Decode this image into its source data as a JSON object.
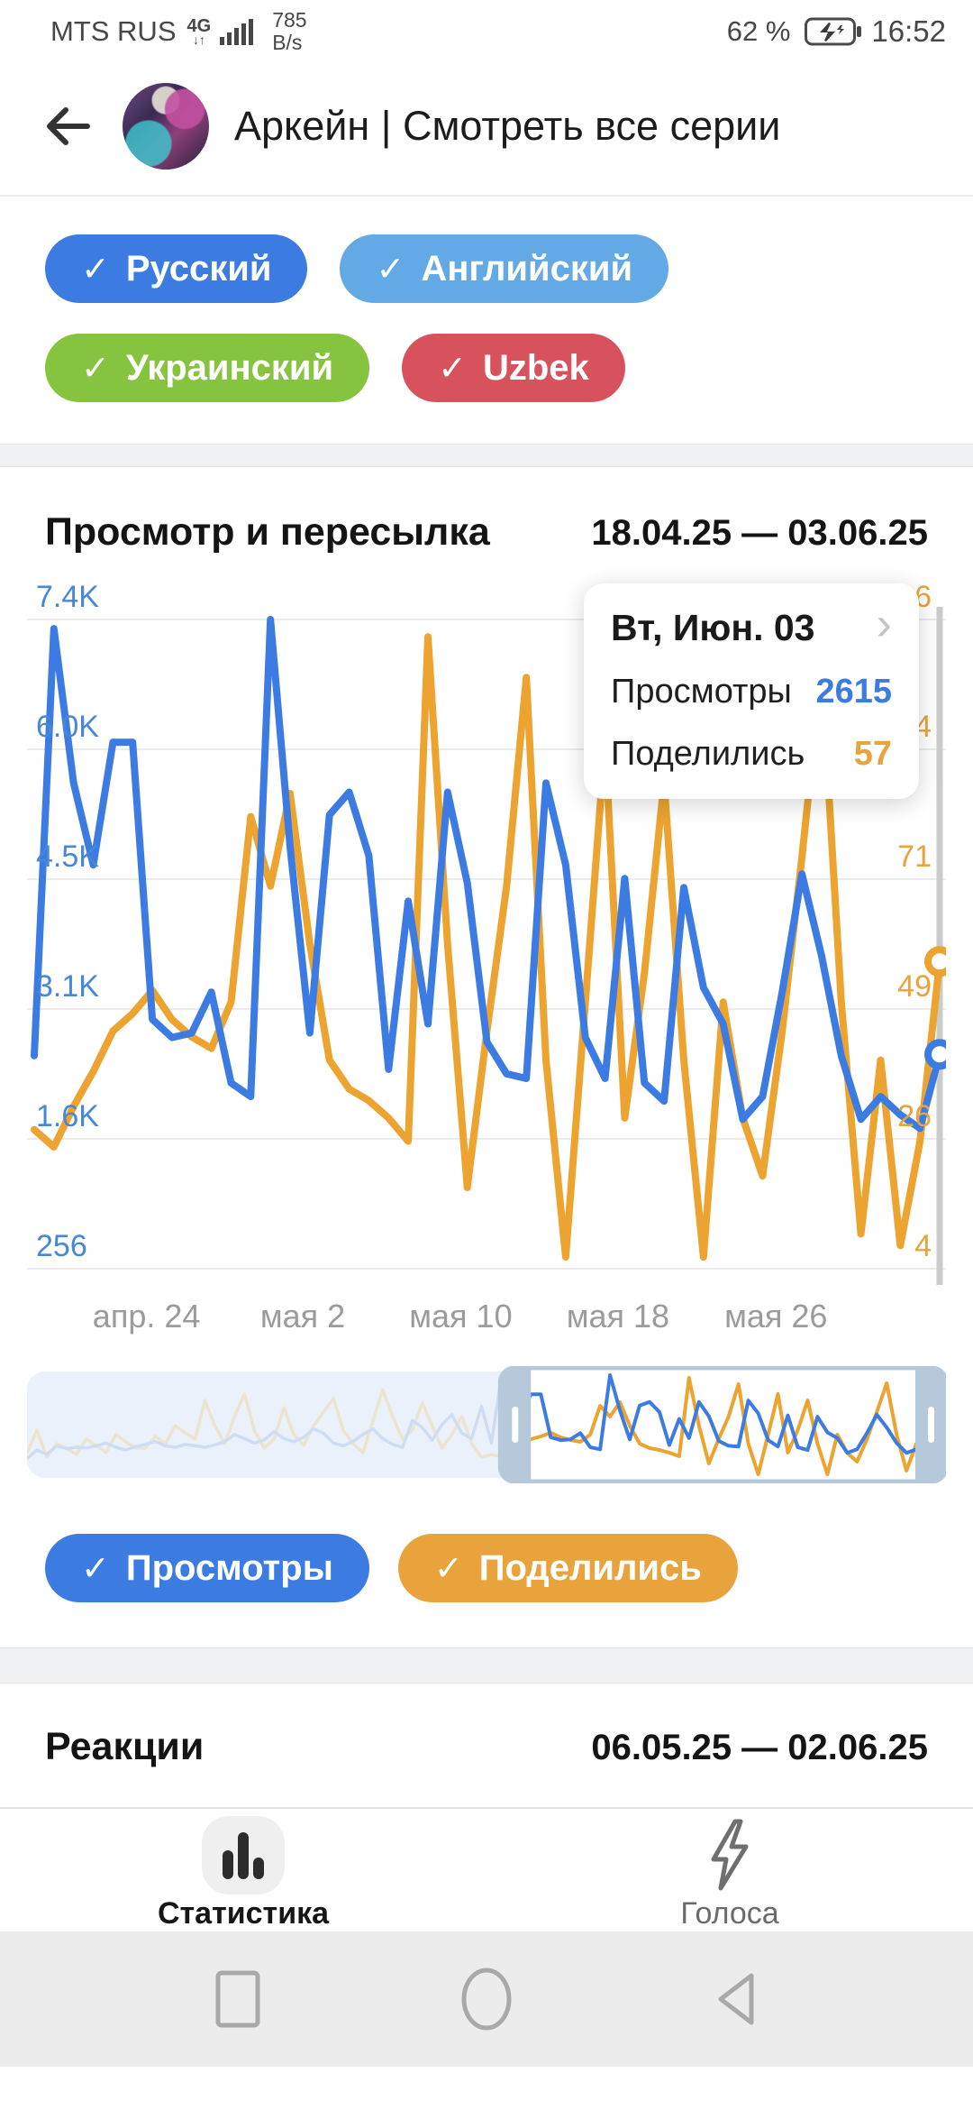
{
  "status_bar": {
    "carrier": "MTS RUS",
    "network": "4G",
    "net_arrows": "↓↑",
    "speed_value": "785",
    "speed_unit": "B/s",
    "battery_percent": "62 %",
    "time": "16:52"
  },
  "header": {
    "title": "Аркейн | Смотреть все серии"
  },
  "language_chips": [
    {
      "label": "Русский",
      "color": "#3c7ce2"
    },
    {
      "label": "Английский",
      "color": "#63a9e6"
    },
    {
      "label": "Украинский",
      "color": "#86c33e"
    },
    {
      "label": "Uzbek",
      "color": "#d7525c"
    }
  ],
  "views_section": {
    "title": "Просмотр и пересылка",
    "date_range": "18.04.25 — 03.06.25"
  },
  "tooltip": {
    "title": "Вт, Июн. 03",
    "rows": [
      {
        "label": "Просмотры",
        "value": "2615",
        "color": "#3c7ce2"
      },
      {
        "label": "Поделились",
        "value": "57",
        "color": "#e8a33d"
      }
    ]
  },
  "chart_data": {
    "type": "line",
    "title": "Просмотр и пересылка",
    "date_range": "18.04.25 — 03.06.25",
    "x_tick_labels": [
      "апр. 24",
      "мая 2",
      "мая 10",
      "мая 18",
      "мая 26"
    ],
    "x_tick_positions_pct": [
      13,
      30,
      47.2,
      64.3,
      81.5
    ],
    "y_left_labels": [
      "7.4K",
      "6.0K",
      "4.5K",
      "3.1K",
      "1.6K",
      "256"
    ],
    "y_right_labels": [
      "116",
      "94",
      "71",
      "49",
      "26",
      "4"
    ],
    "y_left_range": [
      256,
      7400
    ],
    "y_right_range": [
      4,
      116
    ],
    "grid": true,
    "legend_position": "bottom",
    "series": [
      {
        "name": "Просмотры",
        "color": "#3c7ce2",
        "axis": "left",
        "values": [
          2600,
          7300,
          5600,
          4700,
          6050,
          6050,
          3000,
          2800,
          2850,
          3300,
          2300,
          2150,
          7400,
          4900,
          2850,
          5250,
          5500,
          4800,
          2450,
          4300,
          2950,
          5500,
          4500,
          2750,
          2400,
          2350,
          5600,
          4700,
          2800,
          2350,
          4550,
          2300,
          2100,
          4450,
          3350,
          2950,
          1900,
          2150,
          3300,
          4600,
          3700,
          2600,
          1900,
          2150,
          1950,
          1800,
          2615
        ]
      },
      {
        "name": "Поделились",
        "color": "#eca32f",
        "axis": "right",
        "values": [
          28,
          25,
          32,
          38,
          45,
          48,
          52,
          47,
          44,
          42,
          50,
          82,
          70,
          86,
          60,
          40,
          35,
          33,
          30,
          26,
          113,
          60,
          18,
          45,
          70,
          106,
          40,
          6,
          50,
          95,
          30,
          55,
          88,
          40,
          6,
          50,
          30,
          20,
          45,
          75,
          107,
          50,
          10,
          40,
          8,
          26,
          57
        ]
      }
    ],
    "selected_point": {
      "index": 46,
      "date_label": "Вт, Июн. 03",
      "views": 2615,
      "shares": 57
    },
    "minimap": {
      "selection_start_pct": 51.5,
      "selection_end_pct": 100,
      "pre_views": [
        1500,
        2100,
        1800,
        2400,
        2200,
        2300,
        2250,
        2400,
        2600,
        2300,
        2100,
        2350,
        2500,
        2700,
        2400,
        2300,
        2500,
        2400,
        2300,
        2450,
        2700,
        3200,
        2900,
        2600,
        2800,
        3400,
        2900,
        2700,
        3000,
        3600,
        3300,
        2600,
        2400,
        2700,
        3200,
        3600,
        2900,
        2500,
        2300,
        4200,
        3700,
        2800,
        3900,
        4600,
        3300,
        2900,
        5200
      ],
      "pre_shares": [
        30,
        55,
        25,
        40,
        35,
        28,
        45,
        38,
        30,
        50,
        42,
        35,
        35,
        48,
        40,
        60,
        52,
        45,
        88,
        60,
        40,
        70,
        95,
        55,
        35,
        45,
        80,
        50,
        38,
        60,
        75,
        90,
        55,
        40,
        30,
        65,
        100,
        70,
        45,
        55,
        85,
        60,
        35,
        50,
        70,
        40,
        25
      ]
    }
  },
  "legend": [
    {
      "label": "Просмотры",
      "color": "#3c7ce2"
    },
    {
      "label": "Поделились",
      "color": "#e8a33c"
    }
  ],
  "reactions_section": {
    "title": "Реакции",
    "date_range": "06.05.25 — 02.06.25"
  },
  "tab_bar": [
    {
      "label": "Статистика",
      "active": true
    },
    {
      "label": "Голоса",
      "active": false
    }
  ],
  "colors": {
    "grid": "#ebebeb",
    "crosshair": "#cbcbcb",
    "axis_left_labels": "#4687d7",
    "axis_right_labels": "#e8a33d",
    "minimap_frame": "#b6c9da",
    "minimap_dim_bg": "#e9f0f9"
  }
}
